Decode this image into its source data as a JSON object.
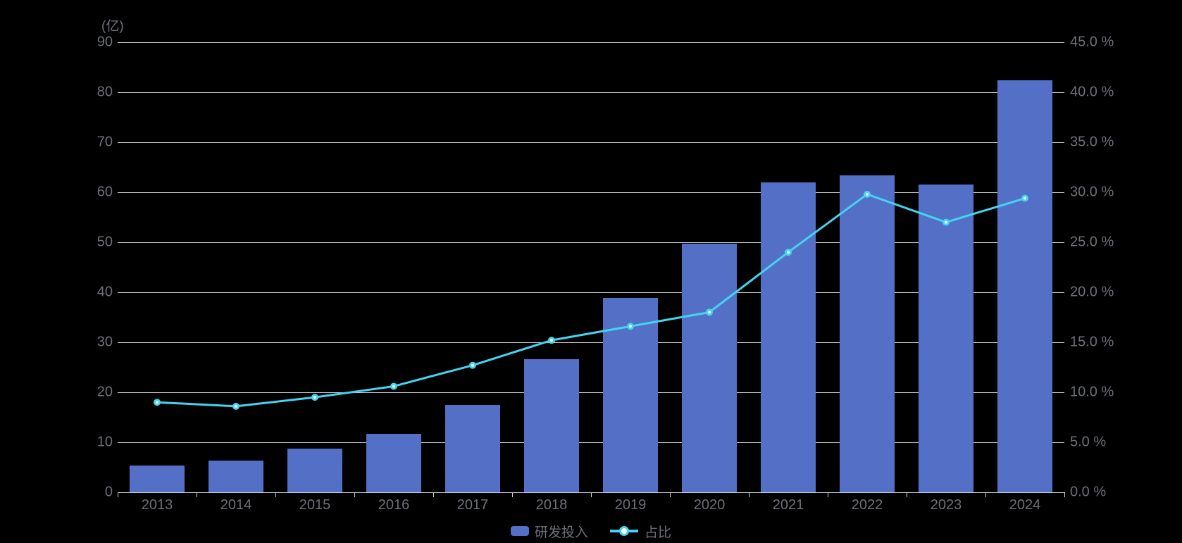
{
  "chart_data": {
    "type": "bar",
    "subtype": "bar-line-combo",
    "title": "",
    "background": "#000000",
    "categories": [
      "2013",
      "2014",
      "2015",
      "2016",
      "2017",
      "2018",
      "2019",
      "2020",
      "2021",
      "2022",
      "2023",
      "2024"
    ],
    "series": [
      {
        "name": "研发投入",
        "type": "bar",
        "axis": "left",
        "unit": "亿",
        "color": "#5470c6",
        "values": [
          5.4,
          6.3,
          8.7,
          11.7,
          17.5,
          26.6,
          38.9,
          49.7,
          62.0,
          63.4,
          61.5,
          82.4
        ]
      },
      {
        "name": "占比",
        "type": "line",
        "axis": "right",
        "unit": "%",
        "color": "#44d3f0",
        "marker": "circle-white-center",
        "values": [
          9.0,
          8.6,
          9.5,
          10.6,
          12.7,
          15.2,
          16.6,
          18.0,
          24.0,
          29.8,
          27.0,
          29.4
        ]
      }
    ],
    "left_axis": {
      "label": "(亿)",
      "min": 0,
      "max": 90,
      "step": 10,
      "tick_labels": [
        "0",
        "10",
        "20",
        "30",
        "40",
        "50",
        "60",
        "70",
        "80",
        "90"
      ]
    },
    "right_axis": {
      "min": 0,
      "max": 45,
      "step": 5,
      "tick_labels": [
        "0.0 %",
        "5.0 %",
        "10.0 %",
        "15.0 %",
        "20.0 %",
        "25.0 %",
        "30.0 %",
        "35.0 %",
        "40.0 %",
        "45.0 %"
      ]
    },
    "grid": true,
    "legend_position": "bottom",
    "text_color": "#6e7079",
    "gridline_color": "#e2e4ee"
  }
}
